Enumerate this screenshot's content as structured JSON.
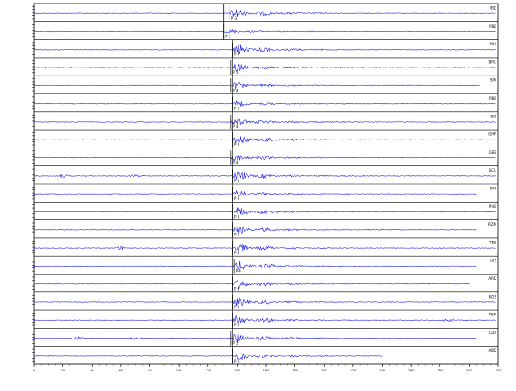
{
  "colors": {
    "trace": "#1414e6",
    "frame": "#000000",
    "pick": "#000000",
    "background": "#ffffff"
  },
  "chart_data": {
    "type": "line",
    "title": "",
    "xlabel": "",
    "ylabel": "",
    "xlim": [
      0,
      320
    ],
    "grid": false,
    "legend": "none",
    "x_ticks": [
      0,
      20,
      40,
      60,
      80,
      100,
      120,
      140,
      160,
      180,
      200,
      220,
      240,
      260,
      280,
      300,
      320
    ],
    "traces": [
      {
        "station": "IBD",
        "pick": "P 3",
        "onset": 135,
        "end": 318,
        "amp": 1.0,
        "bursts": []
      },
      {
        "station": "PBB",
        "pick": "P 3",
        "onset": 131,
        "end": 318,
        "amp": 0.35,
        "bursts": []
      },
      {
        "station": "MUI",
        "pick": "P 4",
        "onset": 137,
        "end": 318,
        "amp": 1.0,
        "bursts": []
      },
      {
        "station": "BRU",
        "pick": "P 3",
        "onset": 136,
        "end": 318,
        "amp": 0.8,
        "bursts": []
      },
      {
        "station": "SIM",
        "pick": "P 4",
        "onset": 136,
        "end": 307,
        "amp": 0.7,
        "bursts": []
      },
      {
        "station": "PBB",
        "pick": "P 3",
        "onset": 137,
        "end": 318,
        "amp": 0.45,
        "bursts": []
      },
      {
        "station": "BIE",
        "pick": "P 4",
        "onset": 136,
        "end": 318,
        "amp": 0.8,
        "bursts": []
      },
      {
        "station": "GHR",
        "pick": "P 3",
        "onset": 137,
        "end": 318,
        "amp": 0.9,
        "bursts": []
      },
      {
        "station": "GEB",
        "pick": "P 4",
        "onset": 136,
        "end": 318,
        "amp": 0.7,
        "bursts": []
      },
      {
        "station": "SCU",
        "pick": "P 4",
        "onset": 137,
        "end": 318,
        "amp": 0.9,
        "bursts": [
          20,
          70
        ]
      },
      {
        "station": "RMI",
        "pick": "P 3",
        "onset": 137,
        "end": 305,
        "amp": 0.6,
        "bursts": []
      },
      {
        "station": "PUB",
        "pick": "P 4",
        "onset": 137,
        "end": 318,
        "amp": 0.9,
        "bursts": []
      },
      {
        "station": "RZM",
        "pick": "P 3",
        "onset": 137,
        "end": 305,
        "amp": 0.7,
        "bursts": []
      },
      {
        "station": "TEB",
        "pick": "P 4",
        "onset": 137,
        "end": 318,
        "amp": 0.8,
        "bursts": [
          60
        ]
      },
      {
        "station": "DIS",
        "pick": "P 4",
        "onset": 138,
        "end": 305,
        "amp": 0.9,
        "bursts": []
      },
      {
        "station": "ARD",
        "pick": "P 3",
        "onset": 137,
        "end": 300,
        "amp": 0.9,
        "bursts": []
      },
      {
        "station": "KOS",
        "pick": "P 3",
        "onset": 137,
        "end": 318,
        "amp": 0.8,
        "bursts": []
      },
      {
        "station": "TEM",
        "pick": "P 4",
        "onset": 137,
        "end": 318,
        "amp": 0.8,
        "bursts": [
          285
        ]
      },
      {
        "station": "CDS",
        "pick": "P 3",
        "onset": 136,
        "end": 305,
        "amp": 0.9,
        "bursts": [
          30,
          70
        ]
      },
      {
        "station": "ABD",
        "pick": "P 3",
        "onset": 137,
        "end": 240,
        "amp": 0.8,
        "bursts": []
      }
    ]
  }
}
